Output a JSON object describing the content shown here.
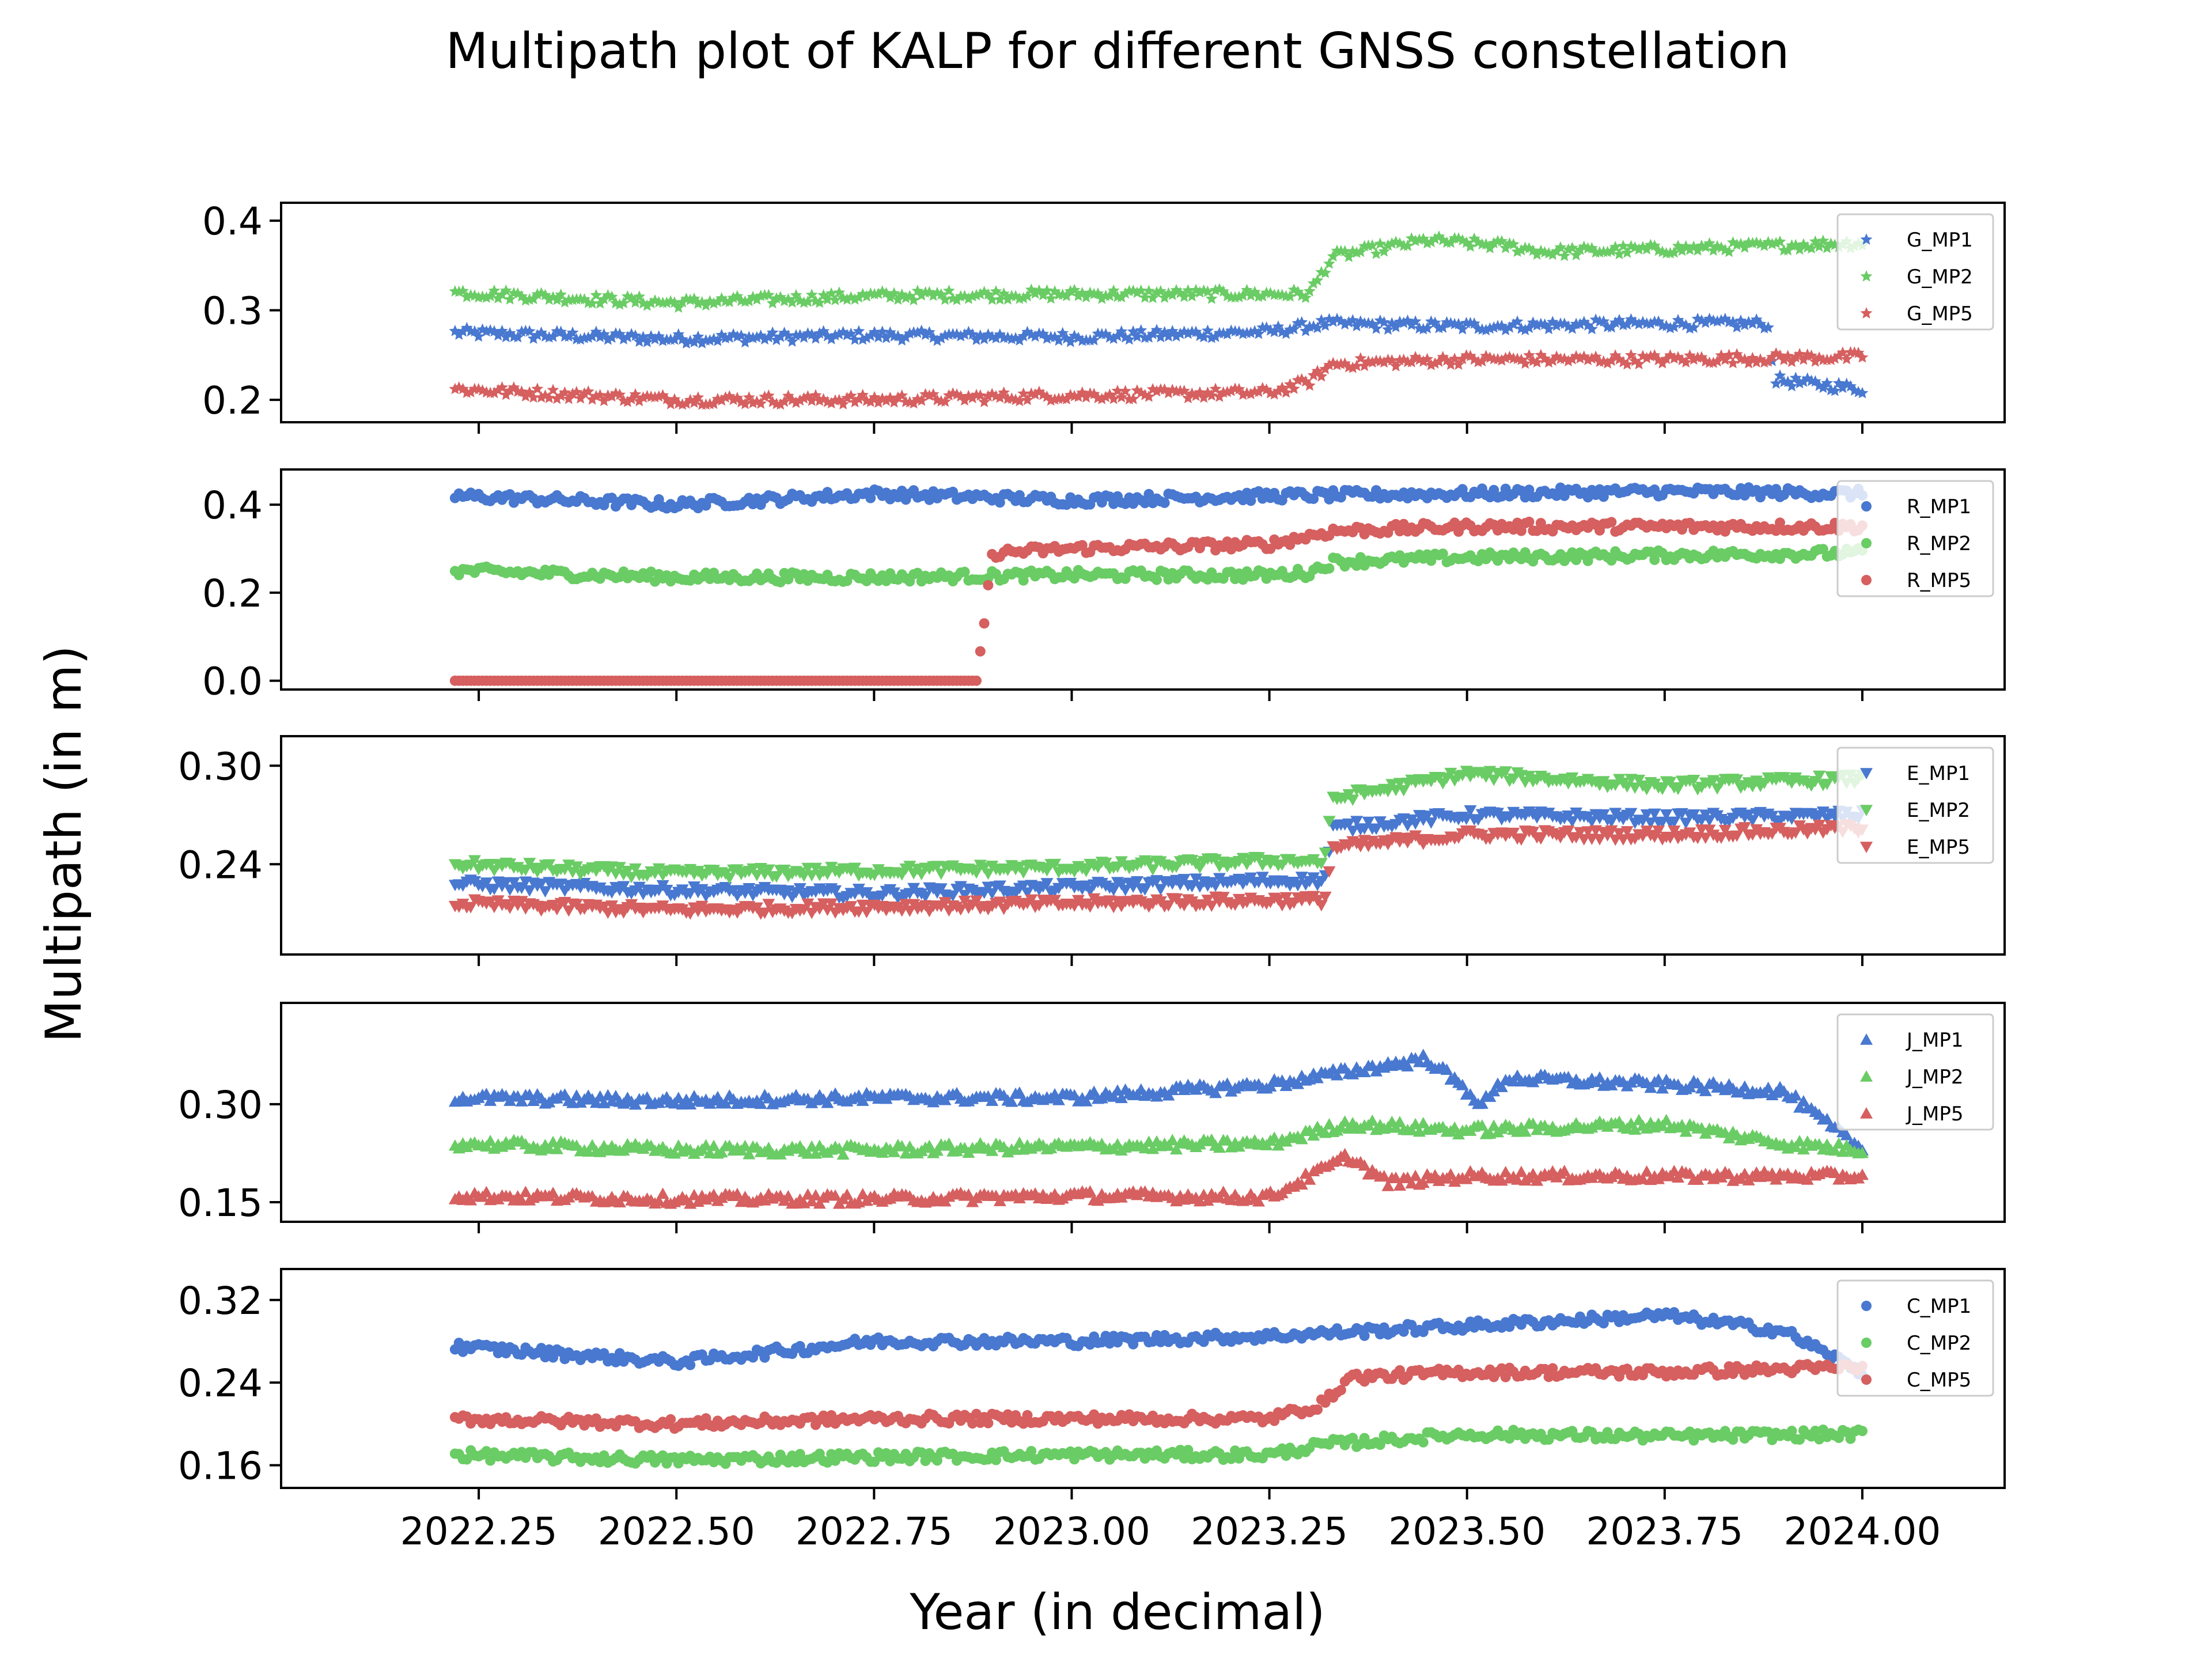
{
  "title": "Multipath plot of KALP for different GNSS constellation",
  "xlabel": "Year (in decimal)",
  "ylabel": "Multipath (in m)",
  "colors": {
    "MP1": "#4878d0",
    "MP2": "#6acc64",
    "MP5": "#d65f5f"
  },
  "chart_data": [
    {
      "type": "scatter",
      "constellation": "G",
      "marker": "star",
      "xlim": [
        2022.0,
        2024.18
      ],
      "ylim": [
        0.175,
        0.42
      ],
      "yticks": [
        0.2,
        0.3,
        0.4
      ],
      "ytick_labels": [
        "0.2",
        "0.3",
        "0.4"
      ],
      "legend": "top-right",
      "series": [
        {
          "name": "G_MP1",
          "x": [
            2022.22,
            2022.5,
            2022.75,
            2023.0,
            2023.25,
            2023.32,
            2023.5,
            2023.75,
            2023.88,
            2023.89,
            2024.0
          ],
          "y": [
            0.275,
            0.268,
            0.272,
            0.27,
            0.276,
            0.285,
            0.282,
            0.285,
            0.285,
            0.222,
            0.212
          ]
        },
        {
          "name": "G_MP2",
          "x": [
            2022.22,
            2022.5,
            2022.75,
            2023.0,
            2023.25,
            2023.3,
            2023.33,
            2023.45,
            2023.55,
            2023.6,
            2023.75,
            2024.0
          ],
          "y": [
            0.32,
            0.308,
            0.316,
            0.318,
            0.318,
            0.318,
            0.36,
            0.378,
            0.372,
            0.365,
            0.368,
            0.375
          ]
        },
        {
          "name": "G_MP5",
          "x": [
            2022.22,
            2022.5,
            2022.75,
            2023.0,
            2023.25,
            2023.3,
            2023.33,
            2023.5,
            2023.75,
            2024.0
          ],
          "y": [
            0.212,
            0.2,
            0.2,
            0.205,
            0.208,
            0.22,
            0.24,
            0.245,
            0.245,
            0.248
          ]
        }
      ]
    },
    {
      "type": "scatter",
      "constellation": "R",
      "marker": "circle",
      "xlim": [
        2022.0,
        2024.18
      ],
      "ylim": [
        -0.02,
        0.48
      ],
      "yticks": [
        0.0,
        0.2,
        0.4
      ],
      "ytick_labels": [
        "0.0",
        "0.2",
        "0.4"
      ],
      "legend": "top-right",
      "series": [
        {
          "name": "R_MP1",
          "x": [
            2022.22,
            2022.5,
            2022.75,
            2023.0,
            2023.25,
            2023.5,
            2023.75,
            2024.0
          ],
          "y": [
            0.42,
            0.4,
            0.425,
            0.41,
            0.42,
            0.425,
            0.43,
            0.425
          ]
        },
        {
          "name": "R_MP2",
          "x": [
            2022.22,
            2022.5,
            2022.75,
            2023.0,
            2023.25,
            2023.3,
            2023.33,
            2023.5,
            2023.75,
            2024.0
          ],
          "y": [
            0.25,
            0.235,
            0.235,
            0.24,
            0.24,
            0.245,
            0.27,
            0.28,
            0.285,
            0.29
          ]
        },
        {
          "name": "R_MP5",
          "x": [
            2022.22,
            2022.5,
            2022.75,
            2022.88,
            2022.9,
            2023.0,
            2023.25,
            2023.33,
            2023.5,
            2023.75,
            2024.0
          ],
          "y": [
            0.0,
            0.0,
            0.0,
            0.0,
            0.29,
            0.3,
            0.31,
            0.34,
            0.35,
            0.35,
            0.35
          ]
        }
      ]
    },
    {
      "type": "scatter",
      "constellation": "E",
      "marker": "triangle-down",
      "xlim": [
        2022.0,
        2024.18
      ],
      "ylim": [
        0.185,
        0.318
      ],
      "yticks": [
        0.24,
        0.3
      ],
      "ytick_labels": [
        "0.24",
        "0.30"
      ],
      "legend": "top-right",
      "series": [
        {
          "name": "E_MP1",
          "x": [
            2022.22,
            2022.5,
            2022.75,
            2023.0,
            2023.25,
            2023.32,
            2023.33,
            2023.5,
            2023.75,
            2024.0
          ],
          "y": [
            0.228,
            0.224,
            0.222,
            0.226,
            0.23,
            0.23,
            0.262,
            0.27,
            0.268,
            0.27
          ]
        },
        {
          "name": "E_MP2",
          "x": [
            2022.22,
            2022.5,
            2022.75,
            2023.0,
            2023.25,
            2023.32,
            2023.33,
            2023.5,
            2023.75,
            2024.0
          ],
          "y": [
            0.24,
            0.234,
            0.236,
            0.238,
            0.242,
            0.242,
            0.28,
            0.295,
            0.288,
            0.292
          ]
        },
        {
          "name": "E_MP5",
          "x": [
            2022.22,
            2022.5,
            2022.75,
            2023.0,
            2023.25,
            2023.32,
            2023.33,
            2023.5,
            2023.75,
            2024.0
          ],
          "y": [
            0.216,
            0.212,
            0.214,
            0.216,
            0.218,
            0.218,
            0.25,
            0.258,
            0.258,
            0.262
          ]
        }
      ]
    },
    {
      "type": "scatter",
      "constellation": "J",
      "marker": "triangle-up",
      "xlim": [
        2022.0,
        2024.18
      ],
      "ylim": [
        0.12,
        0.455
      ],
      "yticks": [
        0.15,
        0.3
      ],
      "ytick_labels": [
        "0.15",
        "0.30"
      ],
      "legend": "top-right",
      "series": [
        {
          "name": "J_MP1",
          "x": [
            2022.22,
            2022.5,
            2022.75,
            2023.0,
            2023.25,
            2023.35,
            2023.45,
            2023.52,
            2023.55,
            2023.75,
            2023.9,
            2024.0
          ],
          "y": [
            0.31,
            0.305,
            0.31,
            0.31,
            0.33,
            0.35,
            0.37,
            0.3,
            0.34,
            0.33,
            0.32,
            0.23
          ]
        },
        {
          "name": "J_MP2",
          "x": [
            2022.22,
            2022.5,
            2022.75,
            2023.0,
            2023.25,
            2023.35,
            2023.5,
            2023.75,
            2023.9,
            2024.0
          ],
          "y": [
            0.24,
            0.23,
            0.23,
            0.235,
            0.24,
            0.27,
            0.26,
            0.27,
            0.24,
            0.23
          ]
        },
        {
          "name": "J_MP5",
          "x": [
            2022.22,
            2022.5,
            2022.75,
            2023.0,
            2023.25,
            2023.35,
            2023.4,
            2023.5,
            2023.75,
            2024.0
          ],
          "y": [
            0.16,
            0.155,
            0.155,
            0.16,
            0.158,
            0.22,
            0.18,
            0.19,
            0.19,
            0.19
          ]
        }
      ]
    },
    {
      "type": "scatter",
      "constellation": "C",
      "marker": "circle",
      "xlim": [
        2022.0,
        2024.18
      ],
      "ylim": [
        0.138,
        0.35
      ],
      "yticks": [
        0.16,
        0.24,
        0.32
      ],
      "ytick_labels": [
        "0.16",
        "0.24",
        "0.32"
      ],
      "legend": "top-right",
      "series": [
        {
          "name": "C_MP1",
          "x": [
            2022.22,
            2022.5,
            2022.75,
            2023.0,
            2023.25,
            2023.5,
            2023.75,
            2023.9,
            2024.0
          ],
          "y": [
            0.275,
            0.26,
            0.28,
            0.28,
            0.285,
            0.295,
            0.305,
            0.29,
            0.25
          ]
        },
        {
          "name": "C_MP2",
          "x": [
            2022.22,
            2022.5,
            2022.75,
            2023.0,
            2023.25,
            2023.32,
            2023.5,
            2023.75,
            2024.0
          ],
          "y": [
            0.17,
            0.165,
            0.168,
            0.17,
            0.17,
            0.18,
            0.19,
            0.188,
            0.19
          ]
        },
        {
          "name": "C_MP5",
          "x": [
            2022.22,
            2022.5,
            2022.75,
            2023.0,
            2023.25,
            2023.32,
            2023.35,
            2023.5,
            2023.75,
            2024.0
          ],
          "y": [
            0.205,
            0.2,
            0.205,
            0.205,
            0.205,
            0.22,
            0.245,
            0.25,
            0.25,
            0.255
          ]
        }
      ]
    }
  ],
  "xticks": [
    2022.25,
    2022.5,
    2022.75,
    2023.0,
    2023.25,
    2023.5,
    2023.75,
    2024.0
  ],
  "xtick_labels": [
    "2022.25",
    "2022.50",
    "2022.75",
    "2023.00",
    "2023.25",
    "2023.50",
    "2023.75",
    "2024.00"
  ]
}
